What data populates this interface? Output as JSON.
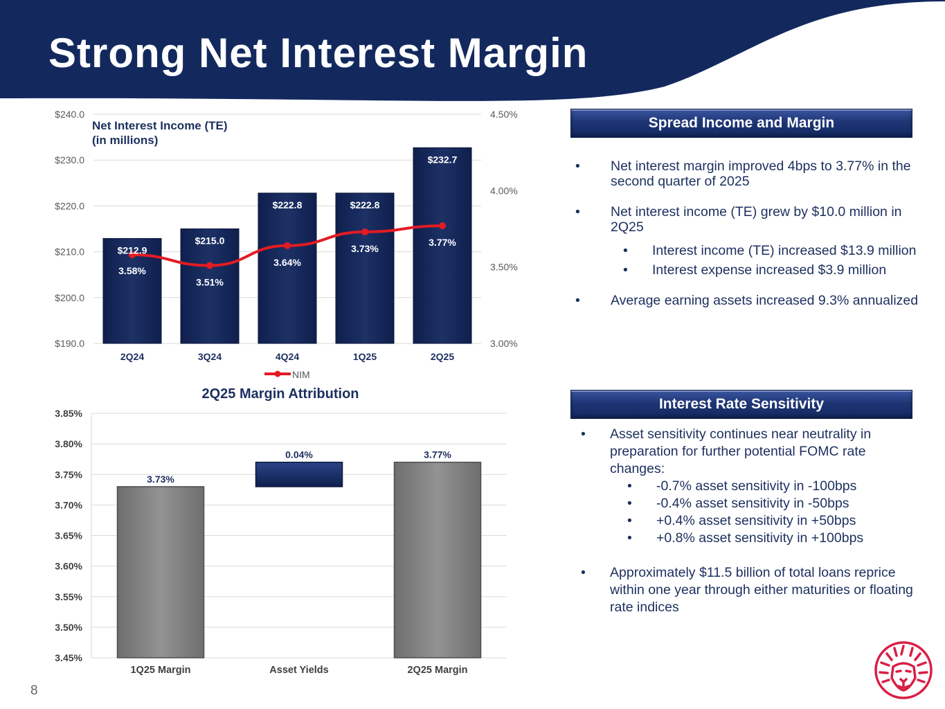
{
  "slide": {
    "title": "Strong Net Interest Margin",
    "page_number": "8",
    "colors": {
      "navy": "#14285f",
      "red": "#e31b23",
      "bar_gray": "#8a8a8a",
      "text_navy": "#1c2f5e",
      "logo_red": "#d81f45"
    }
  },
  "chart_data": [
    {
      "type": "bar",
      "title": "Net Interest Income (TE)",
      "subtitle": "(in millions)",
      "categories": [
        "2Q24",
        "3Q24",
        "4Q24",
        "1Q25",
        "2Q25"
      ],
      "series": [
        {
          "name": "Net Interest Income (TE)",
          "axis": "left",
          "values": [
            212.9,
            215.0,
            222.8,
            222.8,
            232.7
          ],
          "labels": [
            "$212.9",
            "$215.0",
            "$222.8",
            "$222.8",
            "$232.7"
          ]
        },
        {
          "name": "NIM",
          "type": "line",
          "axis": "right",
          "values": [
            3.58,
            3.51,
            3.64,
            3.73,
            3.77
          ],
          "labels": [
            "3.58%",
            "3.51%",
            "3.64%",
            "3.73%",
            "3.77%"
          ]
        }
      ],
      "ylim": [
        190,
        240
      ],
      "yticks": [
        "$190.0",
        "$200.0",
        "$210.0",
        "$220.0",
        "$230.0",
        "$240.0"
      ],
      "y2lim": [
        3.0,
        4.5
      ],
      "y2ticks": [
        "3.00%",
        "3.50%",
        "4.00%",
        "4.50%"
      ],
      "legend": "NIM",
      "legend_position": "bottom",
      "grid": true
    },
    {
      "type": "bar",
      "title": "2Q25 Margin Attribution",
      "categories": [
        "1Q25 Margin",
        "Asset Yields",
        "2Q25 Margin"
      ],
      "bars": [
        {
          "label": "1Q25 Margin",
          "start": 3.45,
          "end": 3.73,
          "value_label": "3.73%"
        },
        {
          "label": "Asset Yields",
          "start": 3.73,
          "end": 3.77,
          "value_label": "0.04%"
        },
        {
          "label": "2Q25 Margin",
          "start": 3.45,
          "end": 3.77,
          "value_label": "3.77%"
        }
      ],
      "ylim": [
        3.45,
        3.85
      ],
      "yticks": [
        "3.45%",
        "3.50%",
        "3.55%",
        "3.60%",
        "3.65%",
        "3.70%",
        "3.75%",
        "3.80%",
        "3.85%"
      ],
      "grid": true
    }
  ],
  "spread": {
    "header": "Spread Income and Margin",
    "bullet1": "Net interest margin improved 4bps to 3.77% in the second quarter of 2025",
    "bullet2": "Net interest income (TE) grew by $10.0 million in 2Q25",
    "sub1": "Interest income (TE) increased $13.9 million",
    "sub2": "Interest expense increased $3.9 million",
    "bullet3": "Average earning assets increased 9.3% annualized"
  },
  "rate": {
    "header": "Interest Rate Sensitivity",
    "bullet1": "Asset sensitivity continues near neutrality in preparation for further potential FOMC rate changes:",
    "sub1": "-0.7% asset sensitivity in -100bps",
    "sub2": "-0.4% asset sensitivity in -50bps",
    "sub3": "+0.4% asset sensitivity in +50bps",
    "sub4": "+0.8% asset sensitivity in +100bps",
    "bullet2": "Approximately $11.5 billion of total loans reprice within one year through either maturities or floating rate indices"
  }
}
